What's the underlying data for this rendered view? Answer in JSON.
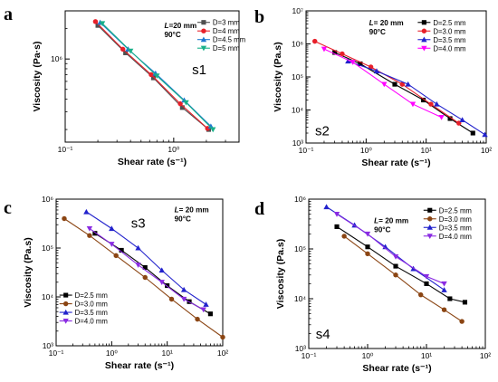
{
  "chart_data": [
    {
      "panel": "a",
      "type": "line",
      "label": "s1",
      "annotation": [
        "L=20 mm",
        "90°C"
      ],
      "xlabel": "Shear rate (s⁻¹)",
      "ylabel": "Viscosity (Pa·s)",
      "xscale": "log",
      "yscale": "log",
      "xlim": [
        0.1,
        4
      ],
      "ylim": [
        150000,
        3000000
      ],
      "xticks": [
        {
          "v": 0.1,
          "t": "10⁻¹"
        },
        {
          "v": 1,
          "t": "10⁰"
        }
      ],
      "yticks": [
        {
          "v": 1000000,
          "t": "10⁶"
        }
      ],
      "legend_position": "top-right",
      "series": [
        {
          "name": "D=3 mm",
          "color": "#505050",
          "marker": "square",
          "x": [
            0.2,
            0.36,
            0.65,
            1.2,
            2.1
          ],
          "y": [
            2150000,
            1150000,
            650000,
            330000,
            200000
          ]
        },
        {
          "name": "D=4 mm",
          "color": "#e8202a",
          "marker": "circle",
          "x": [
            0.19,
            0.34,
            0.62,
            1.15,
            2.05
          ],
          "y": [
            2350000,
            1250000,
            700000,
            360000,
            205000
          ]
        },
        {
          "name": "D=4.5 mm",
          "color": "#1f78d0",
          "marker": "triangle",
          "x": [
            0.21,
            0.38,
            0.68,
            1.25,
            2.2
          ],
          "y": [
            2300000,
            1250000,
            720000,
            390000,
            215000
          ]
        },
        {
          "name": "D=5 mm",
          "color": "#19b089",
          "marker": "triangle-down",
          "x": [
            0.22,
            0.4,
            0.7,
            1.3,
            2.3
          ],
          "y": [
            2250000,
            1200000,
            680000,
            370000,
            200000
          ]
        }
      ]
    },
    {
      "panel": "b",
      "type": "line",
      "label": "s2",
      "annotation": [
        "L= 20 mm",
        "90°C"
      ],
      "xlabel": "Shear rate (s⁻¹)",
      "ylabel": "Viscosity (Pa.s)",
      "xscale": "log",
      "yscale": "log",
      "xlim": [
        0.1,
        100
      ],
      "ylim": [
        1000,
        10000000
      ],
      "xticks": [
        {
          "v": 0.1,
          "t": "10⁻¹"
        },
        {
          "v": 1,
          "t": "10⁰"
        },
        {
          "v": 10,
          "t": "10¹"
        },
        {
          "v": 100,
          "t": "10²"
        }
      ],
      "yticks": [
        {
          "v": 1000,
          "t": "10³"
        },
        {
          "v": 10000,
          "t": "10⁴"
        },
        {
          "v": 100000,
          "t": "10⁵"
        },
        {
          "v": 1000000,
          "t": "10⁶"
        },
        {
          "v": 10000000,
          "t": "10⁷"
        }
      ],
      "legend_position": "top-right",
      "series": [
        {
          "name": "D=2.5 mm",
          "color": "#000000",
          "marker": "square",
          "x": [
            0.3,
            0.8,
            3,
            9,
            25,
            60
          ],
          "y": [
            550000,
            250000,
            60000,
            20000,
            5500,
            2000
          ]
        },
        {
          "name": "D=3.0 mm",
          "color": "#e8202a",
          "marker": "circle",
          "x": [
            0.14,
            0.4,
            1.2,
            4,
            12,
            35
          ],
          "y": [
            1200000,
            500000,
            200000,
            60000,
            15000,
            4000
          ]
        },
        {
          "name": "D=3.5 mm",
          "color": "#2222cc",
          "marker": "triangle",
          "x": [
            0.5,
            1.5,
            5,
            15,
            40,
            95
          ],
          "y": [
            300000,
            150000,
            60000,
            15000,
            5000,
            1800
          ]
        },
        {
          "name": "D=4.0 mm",
          "color": "#ff00ff",
          "marker": "triangle-down",
          "x": [
            0.2,
            0.6,
            2,
            6,
            18
          ],
          "y": [
            700000,
            280000,
            60000,
            15000,
            6000
          ]
        }
      ]
    },
    {
      "panel": "c",
      "type": "line",
      "label": "s3",
      "annotation": [
        "L= 20 mm",
        "90°C"
      ],
      "xlabel": "Shear rate (s⁻¹)",
      "ylabel": "Viscosity (Pa.s)",
      "xscale": "log",
      "yscale": "log",
      "xlim": [
        0.1,
        100
      ],
      "ylim": [
        1000,
        1000000
      ],
      "xticks": [
        {
          "v": 0.1,
          "t": "10⁻¹"
        },
        {
          "v": 1,
          "t": "10⁰"
        },
        {
          "v": 10,
          "t": "10¹"
        },
        {
          "v": 100,
          "t": "10²"
        }
      ],
      "yticks": [
        {
          "v": 1000,
          "t": "10³"
        },
        {
          "v": 10000,
          "t": "10⁴"
        },
        {
          "v": 100000,
          "t": "10⁵"
        },
        {
          "v": 1000000,
          "t": "10⁶"
        }
      ],
      "legend_position": "bottom-left",
      "series": [
        {
          "name": "D=2.5 mm",
          "color": "#000000",
          "marker": "square",
          "x": [
            0.5,
            1.5,
            4,
            10,
            25,
            60
          ],
          "y": [
            200000,
            90000,
            40000,
            17000,
            8000,
            4500
          ]
        },
        {
          "name": "D=3.0 mm",
          "color": "#8b4513",
          "marker": "circle",
          "x": [
            0.14,
            0.4,
            1.2,
            4,
            12,
            35,
            100
          ],
          "y": [
            400000,
            180000,
            70000,
            25000,
            9000,
            3500,
            1500
          ]
        },
        {
          "name": "D=3.5 mm",
          "color": "#2222cc",
          "marker": "triangle",
          "x": [
            0.35,
            1,
            3,
            8,
            20,
            50
          ],
          "y": [
            550000,
            250000,
            100000,
            35000,
            14000,
            7000
          ]
        },
        {
          "name": "D=4.0 mm",
          "color": "#8a2be2",
          "marker": "triangle-down",
          "x": [
            0.4,
            1,
            3,
            8,
            20,
            45
          ],
          "y": [
            250000,
            120000,
            45000,
            20000,
            9000,
            5500
          ]
        }
      ]
    },
    {
      "panel": "d",
      "type": "line",
      "label": "s4",
      "annotation": [
        "L= 20 mm",
        "90°C"
      ],
      "xlabel": "Shear rate (s⁻¹)",
      "ylabel": "Viscosity (Pa.s)",
      "xscale": "log",
      "yscale": "log",
      "xlim": [
        0.1,
        100
      ],
      "ylim": [
        1000,
        1000000
      ],
      "xticks": [
        {
          "v": 0.1,
          "t": "10⁻¹"
        },
        {
          "v": 1,
          "t": "10⁰"
        },
        {
          "v": 10,
          "t": "10¹"
        },
        {
          "v": 100,
          "t": "10²"
        }
      ],
      "yticks": [
        {
          "v": 1000,
          "t": "10³"
        },
        {
          "v": 10000,
          "t": "10⁴"
        },
        {
          "v": 100000,
          "t": "10⁵"
        },
        {
          "v": 1000000,
          "t": "10⁶"
        }
      ],
      "legend_position": "top-right",
      "series": [
        {
          "name": "D=2.5 mm",
          "color": "#000000",
          "marker": "square",
          "x": [
            0.3,
            1,
            3,
            10,
            25,
            45
          ],
          "y": [
            280000,
            110000,
            45000,
            20000,
            10000,
            8500
          ]
        },
        {
          "name": "D=3.0 mm",
          "color": "#8b4513",
          "marker": "circle",
          "x": [
            0.4,
            1,
            3,
            8,
            20,
            40
          ],
          "y": [
            180000,
            80000,
            30000,
            12000,
            6000,
            3500
          ]
        },
        {
          "name": "D=3.5 mm",
          "color": "#2222cc",
          "marker": "triangle",
          "x": [
            0.2,
            0.6,
            2,
            6,
            20
          ],
          "y": [
            700000,
            300000,
            110000,
            40000,
            15000
          ]
        },
        {
          "name": "D=4.0 mm",
          "color": "#8a2be2",
          "marker": "triangle-down",
          "x": [
            0.3,
            1,
            3,
            10,
            20
          ],
          "y": [
            500000,
            200000,
            70000,
            28000,
            20000
          ]
        }
      ]
    }
  ]
}
